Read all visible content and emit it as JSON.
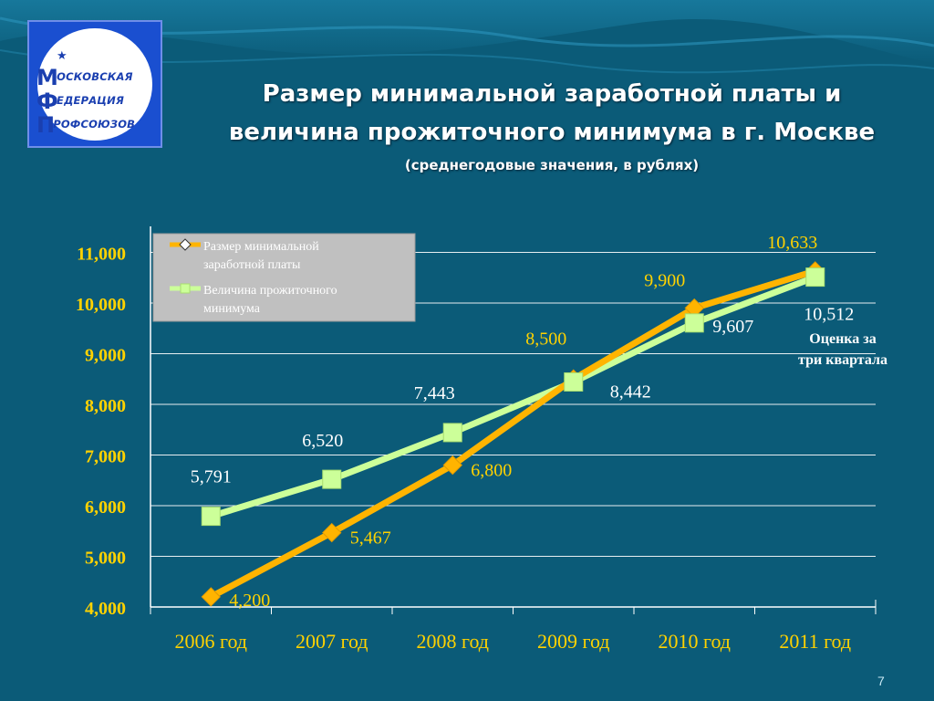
{
  "logo": {
    "line1": "ОСКОВСКАЯ",
    "line1_initial": "М",
    "line2": "ЕДЕРАЦИЯ",
    "line2_initial": "Ф",
    "line3": "РОФСОЮЗОВ",
    "line3_initial": "П"
  },
  "title_line1": "Размер минимальной заработной платы  и",
  "title_line2": "величина прожиточного минимума в г. Москве",
  "subtitle": "(среднегодовые значения, в рублях)",
  "page_number": "7",
  "colors": {
    "background": "#0b5b78",
    "series_wage": "#ffb400",
    "series_subsistence": "#ccff99",
    "axis_labels": "#ffd200",
    "x_labels": "#ffd200"
  },
  "chart_data": {
    "type": "line",
    "categories": [
      "2006 год",
      "2007 год",
      "2008 год",
      "2009 год",
      "2010 год",
      "2011 год"
    ],
    "y_ticks": [
      "4,000",
      "5,000",
      "6,000",
      "7,000",
      "8,000",
      "9,000",
      "10,000",
      "11,000"
    ],
    "ylim": [
      4000,
      11500
    ],
    "grid": true,
    "legend_position": "top-left",
    "series": [
      {
        "name": "Размер минимальной заработной платы",
        "legend_line1": "Размер минимальной",
        "legend_line2": "заработной платы",
        "marker": "diamond",
        "values": [
          4200,
          5467,
          6800,
          8500,
          9900,
          10633
        ],
        "labels": [
          "4,200",
          "5,467",
          "6,800",
          "8,500",
          "9,900",
          "10,633"
        ]
      },
      {
        "name": "Величина прожиточного минимума",
        "legend_line1": "Величина прожиточного",
        "legend_line2": "минимума",
        "marker": "square",
        "values": [
          5791,
          6520,
          7443,
          8442,
          9607,
          10512
        ],
        "labels": [
          "5,791",
          "6,520",
          "7,443",
          "8,442",
          "9,607",
          "10,512"
        ]
      }
    ],
    "annotation_line1": "Оценка за",
    "annotation_line2": "три квартала"
  }
}
